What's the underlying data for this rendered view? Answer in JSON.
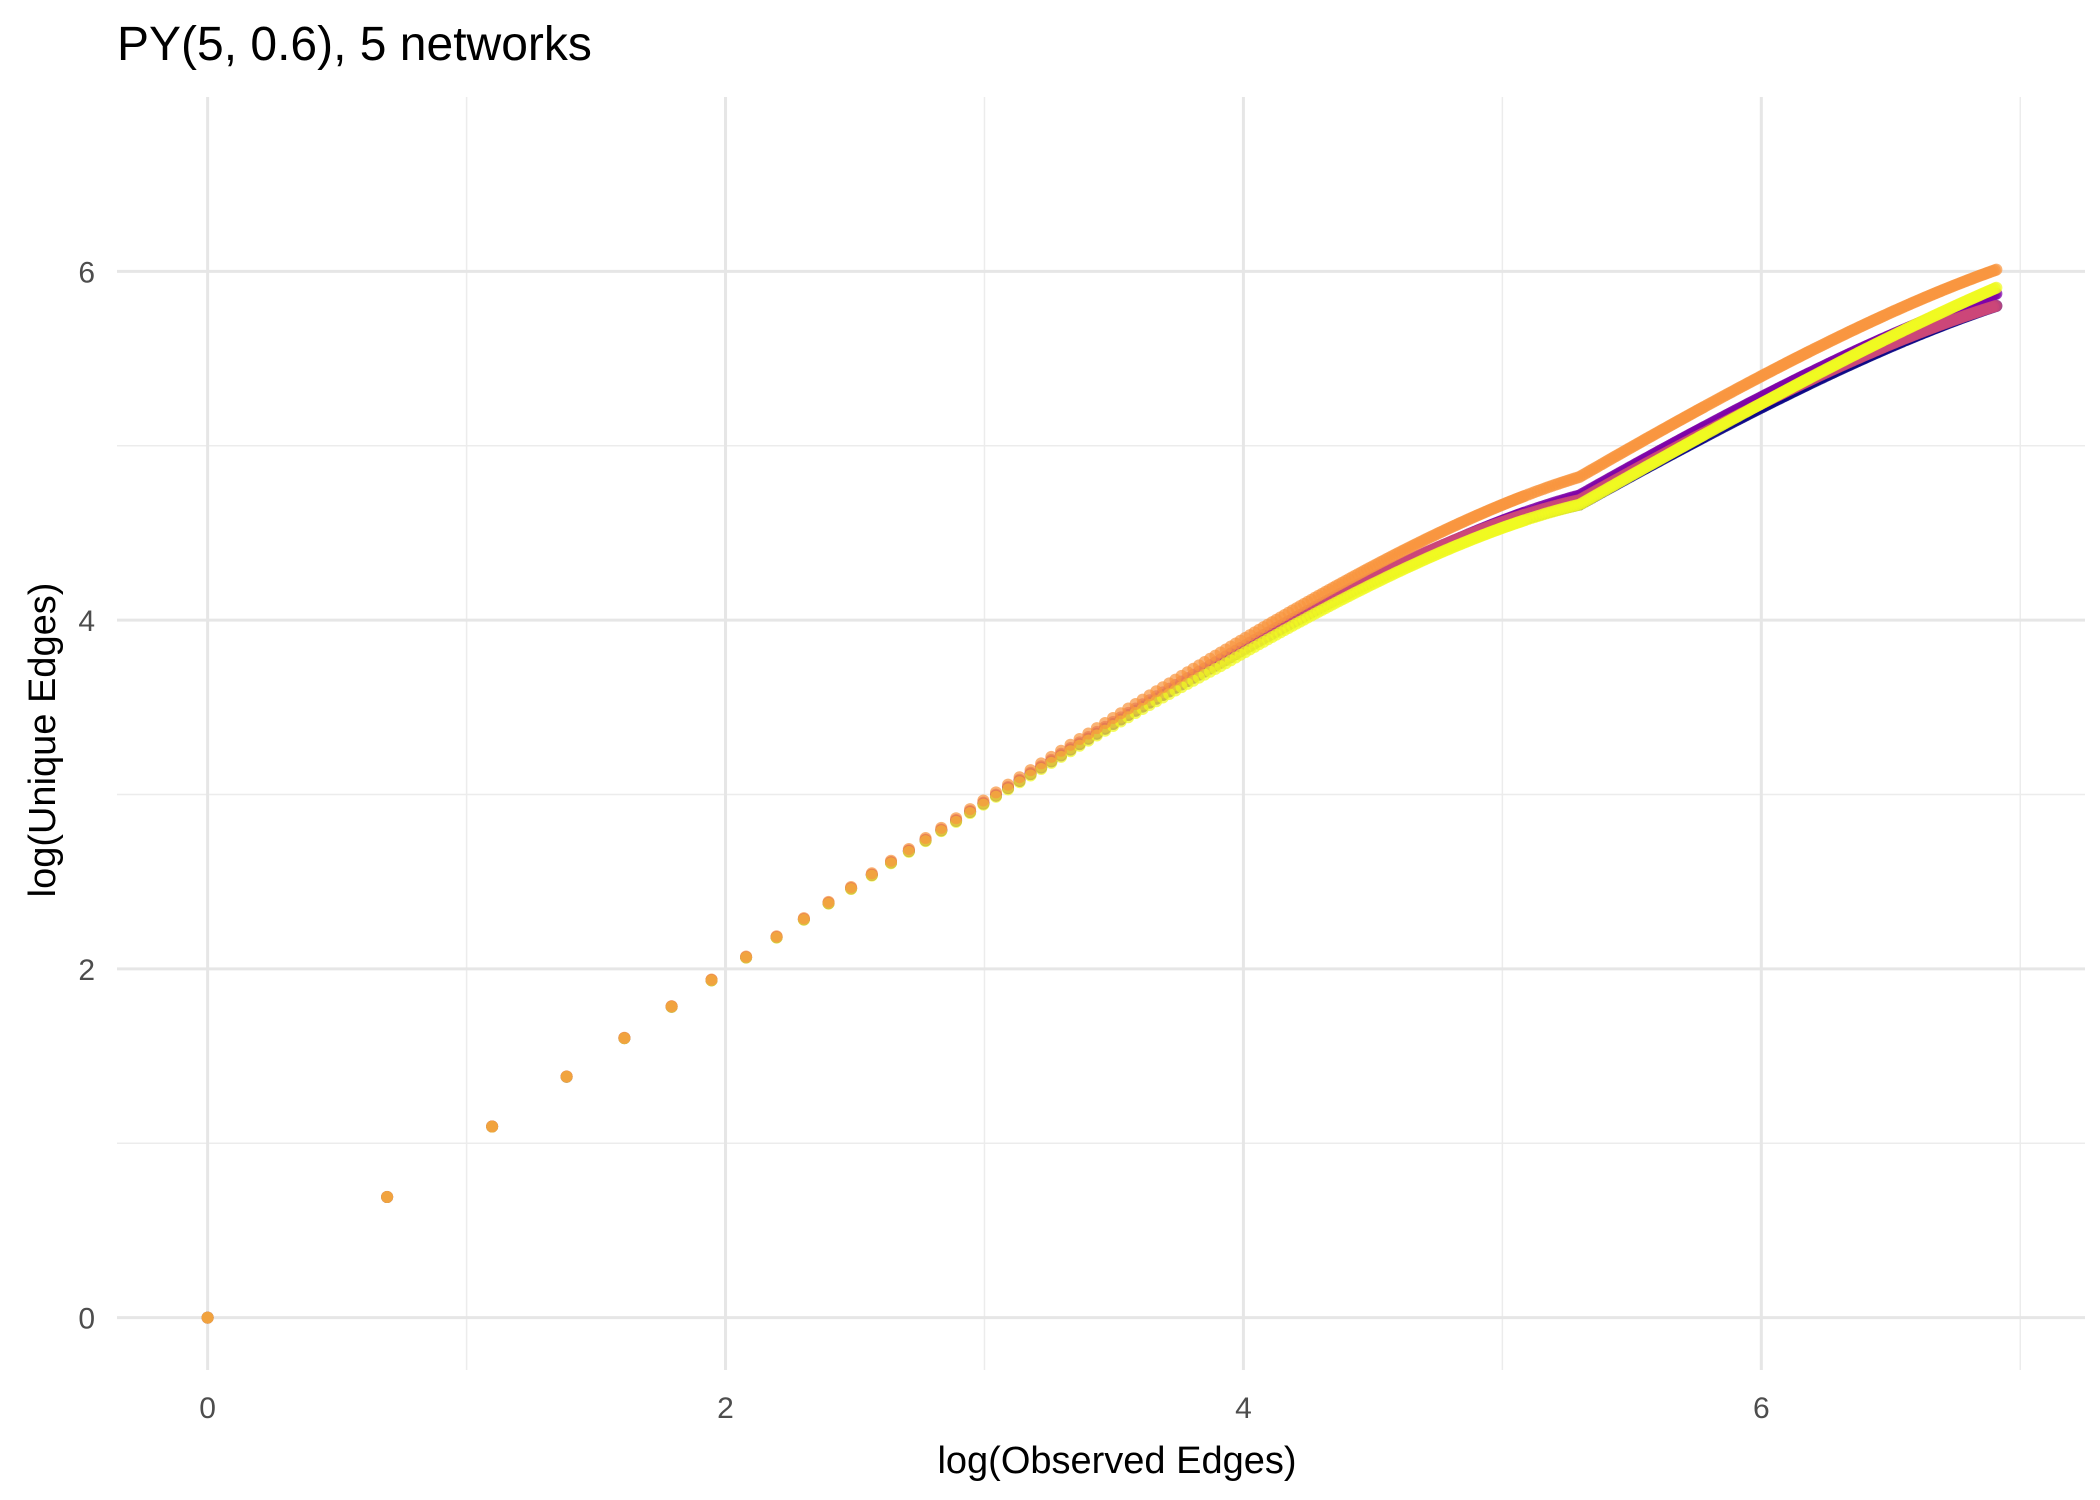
{
  "chart_data": {
    "type": "scatter",
    "title": "PY(5, 0.6), 5 networks",
    "xlabel": "log(Observed Edges)",
    "ylabel": "log(Unique Edges)",
    "xlim": [
      -0.35,
      7.25
    ],
    "ylim": [
      -0.3,
      7.0
    ],
    "x_ticks": [
      0,
      2,
      4,
      6
    ],
    "y_ticks": [
      0,
      2,
      4,
      6
    ],
    "x_tick_labels": [
      "0",
      "2",
      "4",
      "6"
    ],
    "y_tick_labels": [
      "0",
      "2",
      "4",
      "6"
    ],
    "grid": true,
    "legend": "none",
    "n_max": 1000,
    "series": [
      {
        "color": "#0d0887",
        "slope_anchors": [
          [
            0,
            1.0
          ],
          [
            50,
            0.96
          ],
          [
            200,
            0.88
          ],
          [
            1000,
            0.84
          ]
        ]
      },
      {
        "color": "#7e03a8",
        "slope_anchors": [
          [
            0,
            1.0
          ],
          [
            50,
            0.96
          ],
          [
            200,
            0.89
          ],
          [
            1000,
            0.85
          ]
        ]
      },
      {
        "color": "#cc4778",
        "slope_anchors": [
          [
            0,
            1.0
          ],
          [
            50,
            0.965
          ],
          [
            200,
            0.885
          ],
          [
            1000,
            0.84
          ]
        ]
      },
      {
        "color": "#f89540",
        "slope_anchors": [
          [
            0,
            1.0
          ],
          [
            50,
            0.975
          ],
          [
            200,
            0.91
          ],
          [
            1000,
            0.87
          ]
        ]
      },
      {
        "color": "#f0f921",
        "slope_anchors": [
          [
            0,
            1.0
          ],
          [
            50,
            0.955
          ],
          [
            200,
            0.88
          ],
          [
            1000,
            0.855
          ]
        ]
      }
    ]
  }
}
